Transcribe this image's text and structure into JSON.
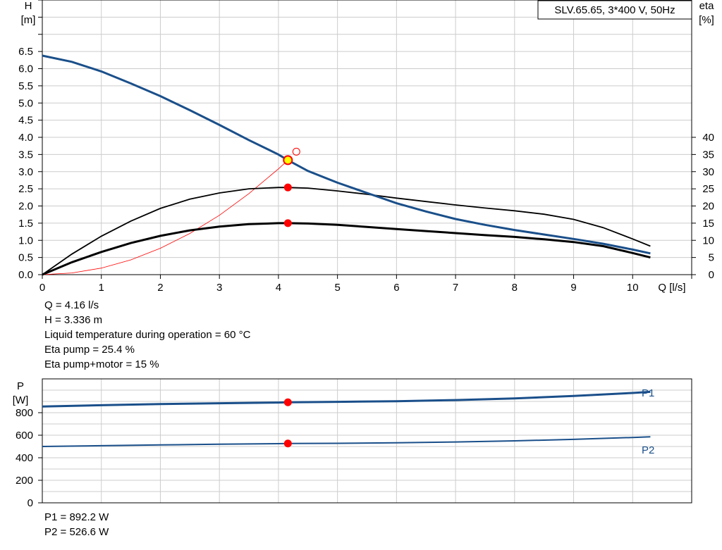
{
  "colors": {
    "head_curve": "#1a4f8a",
    "eta_curve": "#000000",
    "duty_point": "#ff0000",
    "duty_point_head": "#ffff00",
    "grid": "#cccccc",
    "power_curve": "#1a4f8a"
  },
  "chart_data": [
    {
      "type": "line",
      "title": "SLV.65.65, 3*400 V, 50Hz",
      "xlabel": "Q [l/s]",
      "ylabel": [
        "H",
        "[m]"
      ],
      "y2label": [
        "eta",
        "[%]"
      ],
      "xlim": [
        0,
        11
      ],
      "ylim": [
        0,
        8
      ],
      "y2lim": [
        0,
        80
      ],
      "xticks": [
        "0",
        "1",
        "2",
        "3",
        "4",
        "5",
        "6",
        "7",
        "8",
        "9",
        "10"
      ],
      "yticks": [
        "0.0",
        "0.5",
        "1.0",
        "1.5",
        "2.0",
        "2.5",
        "3.0",
        "3.5",
        "4.0",
        "4.5",
        "5.0",
        "5.5",
        "6.0",
        "6.5"
      ],
      "y2ticks": [
        "0",
        "5",
        "10",
        "15",
        "20",
        "25",
        "30",
        "35",
        "40"
      ],
      "grid": true,
      "series": [
        {
          "key": "head",
          "axis": "left",
          "x": [
            0,
            0.5,
            1,
            1.5,
            2,
            2.5,
            3,
            3.5,
            4,
            4.16,
            4.5,
            5,
            5.5,
            6,
            6.5,
            7,
            7.5,
            8,
            8.5,
            9,
            9.5,
            10,
            10.3
          ],
          "y": [
            6.38,
            6.2,
            5.92,
            5.57,
            5.2,
            4.79,
            4.36,
            3.92,
            3.5,
            3.336,
            3.02,
            2.68,
            2.38,
            2.08,
            1.84,
            1.62,
            1.45,
            1.3,
            1.17,
            1.04,
            0.9,
            0.73,
            0.62
          ]
        },
        {
          "key": "eta_pump",
          "axis": "right",
          "x": [
            0,
            0.5,
            1,
            1.5,
            2,
            2.5,
            3,
            3.5,
            4,
            4.16,
            4.5,
            5,
            5.5,
            6,
            6.5,
            7,
            7.5,
            8,
            8.5,
            9,
            9.5,
            10,
            10.3
          ],
          "y": [
            0,
            6.0,
            11.2,
            15.6,
            19.3,
            22.0,
            23.8,
            25.0,
            25.4,
            25.4,
            25.2,
            24.4,
            23.4,
            22.3,
            21.3,
            20.3,
            19.4,
            18.6,
            17.6,
            16.1,
            13.7,
            10.4,
            8.3
          ]
        },
        {
          "key": "eta_total",
          "axis": "right",
          "x": [
            0,
            0.5,
            1,
            1.5,
            2,
            2.5,
            3,
            3.5,
            4,
            4.16,
            4.5,
            5,
            5.5,
            6,
            6.5,
            7,
            7.5,
            8,
            8.5,
            9,
            9.5,
            10,
            10.3
          ],
          "y": [
            0,
            3.6,
            6.6,
            9.2,
            11.3,
            12.9,
            14.0,
            14.7,
            15.0,
            15.0,
            14.9,
            14.5,
            13.9,
            13.3,
            12.7,
            12.1,
            11.5,
            11.0,
            10.3,
            9.5,
            8.3,
            6.3,
            5.0
          ]
        },
        {
          "key": "system_curve",
          "axis": "left",
          "x": [
            0,
            0.5,
            1,
            1.5,
            2,
            2.5,
            3,
            3.5,
            4,
            4.16
          ],
          "y": [
            0,
            0.05,
            0.19,
            0.43,
            0.77,
            1.2,
            1.73,
            2.36,
            3.08,
            3.336
          ]
        }
      ],
      "duty_point": {
        "q": 4.16,
        "h": 3.336,
        "eta_pump": 25.4,
        "eta_total": 15
      }
    },
    {
      "type": "line",
      "ylabel": [
        "P",
        "[W]"
      ],
      "xlim": [
        0,
        11
      ],
      "ylim": [
        0,
        1100
      ],
      "yticks": [
        "0",
        "200",
        "400",
        "600",
        "800"
      ],
      "grid": true,
      "series": [
        {
          "name": "P1",
          "x": [
            0,
            1,
            2,
            3,
            4,
            4.16,
            5,
            6,
            7,
            8,
            9,
            10,
            10.3
          ],
          "y": [
            855,
            866,
            876,
            884,
            890,
            892.2,
            896,
            902,
            912,
            927,
            948,
            975,
            985
          ]
        },
        {
          "name": "P2",
          "x": [
            0,
            1,
            2,
            3,
            4,
            4.16,
            5,
            6,
            7,
            8,
            9,
            10,
            10.3
          ],
          "y": [
            500,
            507,
            514,
            520,
            525,
            526.6,
            528,
            533,
            540,
            550,
            563,
            580,
            586
          ]
        }
      ],
      "duty_point": {
        "q": 4.16,
        "p1": 892.2,
        "p2": 526.6
      }
    }
  ],
  "info_upper": [
    "Q = 4.16 l/s",
    "H = 3.336 m",
    "Liquid temperature during operation = 60 °C",
    "Eta pump = 25.4 %",
    "Eta pump+motor = 15 %"
  ],
  "info_lower": [
    "P1 = 892.2 W",
    "P2 = 526.6 W"
  ]
}
